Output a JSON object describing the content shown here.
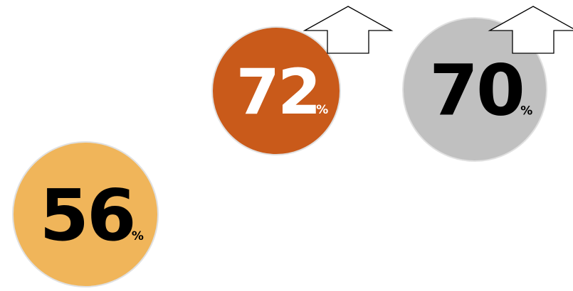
{
  "stats": [
    {
      "value": 72,
      "unit": "%",
      "color": "#c95a1a",
      "text_color": "#ffffff",
      "arrow": true
    },
    {
      "value": 70,
      "unit": "%",
      "color": "#c0c0c0",
      "text_color": "#000000",
      "arrow": true
    },
    {
      "value": 56,
      "unit": "%",
      "color": "#f0b55a",
      "text_color": "#000000",
      "arrow": false
    }
  ]
}
